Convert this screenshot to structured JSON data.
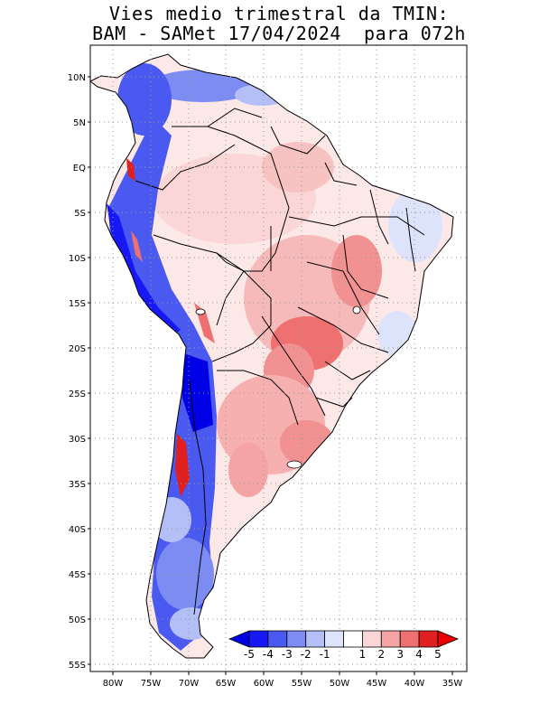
{
  "title": {
    "line1": "Vies medio trimestral da TMIN:",
    "line2": "BAM - SAMet 17/04/2024  para 072h"
  },
  "map": {
    "region": "South America",
    "lat_range": [
      -55,
      12
    ],
    "lon_range": [
      -83,
      -35
    ],
    "grid": "dotted",
    "lat_labels": [
      "10N",
      "5N",
      "EQ",
      "5S",
      "10S",
      "15S",
      "20S",
      "25S",
      "30S",
      "35S",
      "40S",
      "45S",
      "50S",
      "55S"
    ],
    "lon_labels": [
      "80W",
      "75W",
      "70W",
      "65W",
      "60W",
      "55W",
      "50W",
      "45W",
      "40W",
      "35W"
    ]
  },
  "colorbar": {
    "labels": [
      "-5",
      "-4",
      "-3",
      "-2",
      "-1",
      "1",
      "2",
      "3",
      "4",
      "5"
    ],
    "colors": [
      "#1818f5",
      "#4a5af0",
      "#7d8cf2",
      "#b3bff6",
      "#dde3fb",
      "#ffffff",
      "#fbd6d6",
      "#f4a4a4",
      "#ee7070",
      "#e02020"
    ],
    "end_colors": {
      "low": "#0000e6",
      "high": "#e60000"
    }
  }
}
